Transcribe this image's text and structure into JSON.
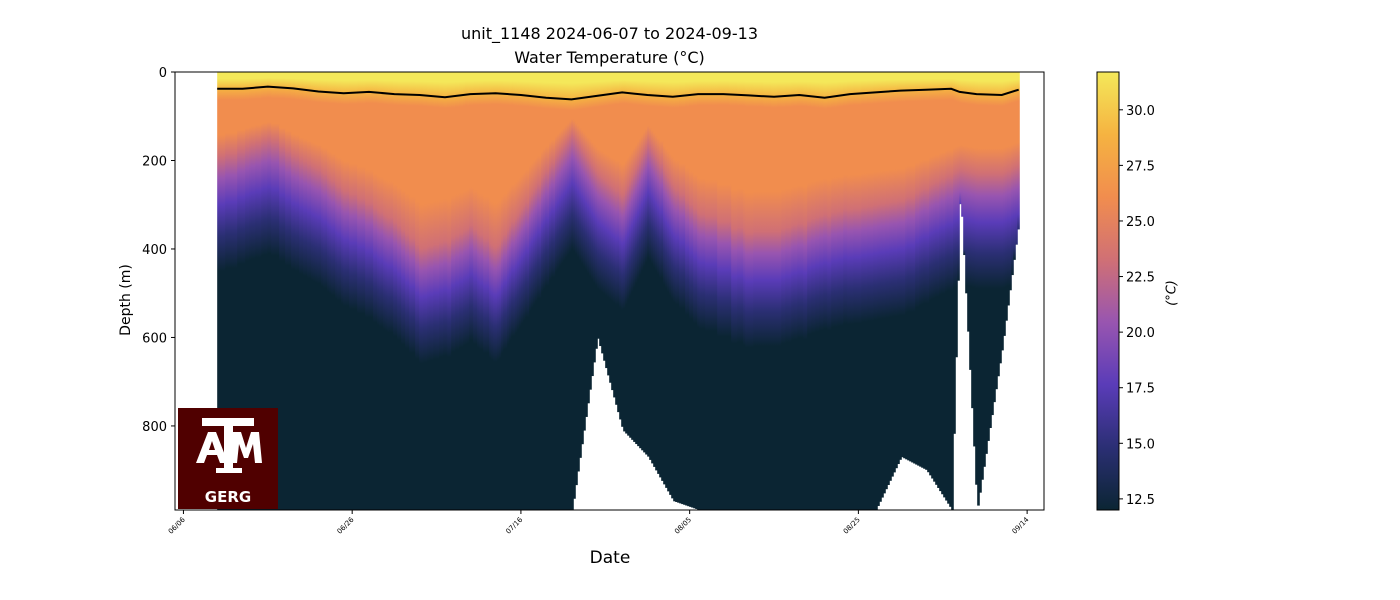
{
  "chart_data": {
    "type": "heatmap",
    "title": "unit_1148 2024-06-07 to 2024-09-13",
    "subtitle": "Water Temperature (°C)",
    "xlabel": "Date",
    "ylabel": "Depth (m)",
    "colorbar_label": "(°C)",
    "x_ticks": [
      "06/06",
      "06/26",
      "07/16",
      "08/05",
      "08/25",
      "09/14"
    ],
    "y_ticks": [
      0,
      200,
      400,
      600,
      800
    ],
    "xlim": [
      "2024-06-05",
      "2024-09-16"
    ],
    "ylim": [
      990,
      0
    ],
    "color_range": [
      12,
      31.7
    ],
    "colorbar_ticks": [
      "12.5",
      "15.0",
      "17.5",
      "20.0",
      "22.5",
      "25.0",
      "27.5",
      "30.0"
    ],
    "colormap": [
      "#0b2533",
      "#2b2f74",
      "#5a3cb8",
      "#9855b0",
      "#d07075",
      "#f18d4e",
      "#f5b341",
      "#f4e85a"
    ],
    "data_start": "2024-06-10",
    "data_end": "2024-09-13",
    "profile_samples": [
      {
        "date": "2024-06-10",
        "mixed_layer_depth": 38,
        "thermocline_depth": 190,
        "max_depth": 990
      },
      {
        "date": "2024-06-13",
        "mixed_layer_depth": 38,
        "thermocline_depth": 170,
        "max_depth": 990
      },
      {
        "date": "2024-06-16",
        "mixed_layer_depth": 33,
        "thermocline_depth": 150,
        "max_depth": 990
      },
      {
        "date": "2024-06-19",
        "mixed_layer_depth": 37,
        "thermocline_depth": 190,
        "max_depth": 990
      },
      {
        "date": "2024-06-22",
        "mixed_layer_depth": 44,
        "thermocline_depth": 220,
        "max_depth": 990
      },
      {
        "date": "2024-06-25",
        "mixed_layer_depth": 48,
        "thermocline_depth": 270,
        "max_depth": 990
      },
      {
        "date": "2024-06-28",
        "mixed_layer_depth": 45,
        "thermocline_depth": 300,
        "max_depth": 990
      },
      {
        "date": "2024-07-01",
        "mixed_layer_depth": 50,
        "thermocline_depth": 340,
        "max_depth": 990
      },
      {
        "date": "2024-07-04",
        "mixed_layer_depth": 52,
        "thermocline_depth": 400,
        "max_depth": 990
      },
      {
        "date": "2024-07-07",
        "mixed_layer_depth": 57,
        "thermocline_depth": 380,
        "max_depth": 990
      },
      {
        "date": "2024-07-10",
        "mixed_layer_depth": 50,
        "thermocline_depth": 350,
        "max_depth": 990
      },
      {
        "date": "2024-07-13",
        "mixed_layer_depth": 48,
        "thermocline_depth": 400,
        "max_depth": 990
      },
      {
        "date": "2024-07-16",
        "mixed_layer_depth": 52,
        "thermocline_depth": 310,
        "max_depth": 990
      },
      {
        "date": "2024-07-19",
        "mixed_layer_depth": 58,
        "thermocline_depth": 220,
        "max_depth": 990
      },
      {
        "date": "2024-07-22",
        "mixed_layer_depth": 62,
        "thermocline_depth": 140,
        "max_depth": 990
      },
      {
        "date": "2024-07-25",
        "mixed_layer_depth": 54,
        "thermocline_depth": 230,
        "max_depth": 600
      },
      {
        "date": "2024-07-28",
        "mixed_layer_depth": 46,
        "thermocline_depth": 280,
        "max_depth": 810
      },
      {
        "date": "2024-07-31",
        "mixed_layer_depth": 52,
        "thermocline_depth": 160,
        "max_depth": 870
      },
      {
        "date": "2024-08-03",
        "mixed_layer_depth": 56,
        "thermocline_depth": 260,
        "max_depth": 970
      },
      {
        "date": "2024-08-06",
        "mixed_layer_depth": 50,
        "thermocline_depth": 320,
        "max_depth": 990
      },
      {
        "date": "2024-08-09",
        "mixed_layer_depth": 50,
        "thermocline_depth": 340,
        "max_depth": 990
      },
      {
        "date": "2024-08-12",
        "mixed_layer_depth": 53,
        "thermocline_depth": 360,
        "max_depth": 990
      },
      {
        "date": "2024-08-15",
        "mixed_layer_depth": 56,
        "thermocline_depth": 360,
        "max_depth": 990
      },
      {
        "date": "2024-08-18",
        "mixed_layer_depth": 52,
        "thermocline_depth": 340,
        "max_depth": 990
      },
      {
        "date": "2024-08-21",
        "mixed_layer_depth": 58,
        "thermocline_depth": 320,
        "max_depth": 990
      },
      {
        "date": "2024-08-24",
        "mixed_layer_depth": 50,
        "thermocline_depth": 310,
        "max_depth": 990
      },
      {
        "date": "2024-08-27",
        "mixed_layer_depth": 46,
        "thermocline_depth": 300,
        "max_depth": 990
      },
      {
        "date": "2024-08-30",
        "mixed_layer_depth": 42,
        "thermocline_depth": 290,
        "max_depth": 870
      },
      {
        "date": "2024-09-02",
        "mixed_layer_depth": 40,
        "thermocline_depth": 260,
        "max_depth": 900
      },
      {
        "date": "2024-09-05",
        "mixed_layer_depth": 38,
        "thermocline_depth": 230,
        "max_depth": 990
      },
      {
        "date": "2024-09-06",
        "mixed_layer_depth": 45,
        "thermocline_depth": 220,
        "max_depth": 260
      },
      {
        "date": "2024-09-08",
        "mixed_layer_depth": 50,
        "thermocline_depth": 230,
        "max_depth": 990
      },
      {
        "date": "2024-09-11",
        "mixed_layer_depth": 52,
        "thermocline_depth": 230,
        "max_depth": 620
      },
      {
        "date": "2024-09-13",
        "mixed_layer_depth": 40,
        "thermocline_depth": 210,
        "max_depth": 330
      }
    ],
    "grid": false,
    "legend": "colorbar-right"
  },
  "logo": {
    "name": "aggie-tam-logo",
    "text": "GERG"
  }
}
